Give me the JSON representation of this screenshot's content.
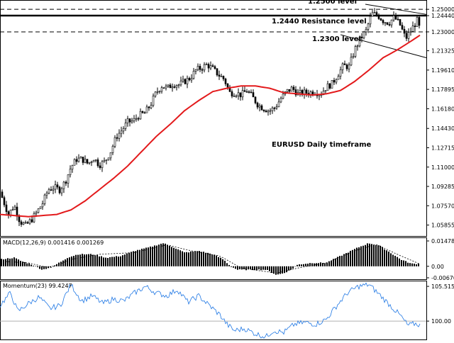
{
  "chart_data": [
    {
      "type": "candlestick",
      "title": "EURUSD Daily timeframe",
      "ylim": [
        1.052,
        1.2545
      ],
      "y_ticks": [
        "1.25000",
        "1.24440",
        "1.23000",
        "1.21325",
        "1.19610",
        "1.17895",
        "1.16180",
        "1.14430",
        "1.12715",
        "1.11000",
        "1.09285",
        "1.07570",
        "1.05855"
      ],
      "y_tick_values": [
        1.25,
        1.2444,
        1.23,
        1.21325,
        1.1961,
        1.17895,
        1.1618,
        1.1443,
        1.12715,
        1.11,
        1.09285,
        1.0757,
        1.05855
      ],
      "close_path": [
        [
          0,
          1.088
        ],
        [
          12,
          1.068
        ],
        [
          20,
          1.076
        ],
        [
          28,
          1.062
        ],
        [
          36,
          1.058
        ],
        [
          44,
          1.063
        ],
        [
          52,
          1.07
        ],
        [
          60,
          1.078
        ],
        [
          68,
          1.09
        ],
        [
          76,
          1.092
        ],
        [
          84,
          1.09
        ],
        [
          92,
          1.097
        ],
        [
          100,
          1.11
        ],
        [
          108,
          1.117
        ],
        [
          116,
          1.117
        ],
        [
          124,
          1.113
        ],
        [
          132,
          1.118
        ],
        [
          140,
          1.112
        ],
        [
          148,
          1.115
        ],
        [
          156,
          1.124
        ],
        [
          164,
          1.137
        ],
        [
          172,
          1.143
        ],
        [
          180,
          1.15
        ],
        [
          188,
          1.151
        ],
        [
          196,
          1.156
        ],
        [
          204,
          1.158
        ],
        [
          212,
          1.165
        ],
        [
          220,
          1.176
        ],
        [
          228,
          1.182
        ],
        [
          236,
          1.18
        ],
        [
          244,
          1.184
        ],
        [
          252,
          1.183
        ],
        [
          260,
          1.186
        ],
        [
          268,
          1.189
        ],
        [
          276,
          1.196
        ],
        [
          284,
          1.198
        ],
        [
          292,
          1.201
        ],
        [
          300,
          1.197
        ],
        [
          308,
          1.192
        ],
        [
          316,
          1.188
        ],
        [
          324,
          1.176
        ],
        [
          332,
          1.176
        ],
        [
          340,
          1.174
        ],
        [
          348,
          1.178
        ],
        [
          356,
          1.172
        ],
        [
          364,
          1.165
        ],
        [
          372,
          1.162
        ],
        [
          380,
          1.16
        ],
        [
          388,
          1.163
        ],
        [
          396,
          1.171
        ],
        [
          404,
          1.177
        ],
        [
          412,
          1.18
        ],
        [
          420,
          1.175
        ],
        [
          428,
          1.176
        ],
        [
          436,
          1.176
        ],
        [
          444,
          1.177
        ],
        [
          452,
          1.175
        ],
        [
          460,
          1.181
        ],
        [
          468,
          1.184
        ],
        [
          476,
          1.192
        ],
        [
          484,
          1.2
        ],
        [
          492,
          1.199
        ],
        [
          500,
          1.214
        ],
        [
          508,
          1.224
        ],
        [
          516,
          1.231
        ],
        [
          524,
          1.246
        ],
        [
          532,
          1.245
        ],
        [
          540,
          1.24
        ],
        [
          548,
          1.238
        ],
        [
          556,
          1.243
        ],
        [
          564,
          1.236
        ],
        [
          572,
          1.224
        ],
        [
          580,
          1.232
        ],
        [
          588,
          1.24
        ],
        [
          592,
          1.232
        ]
      ],
      "ma_path": [
        [
          0,
          1.068
        ],
        [
          20,
          1.067
        ],
        [
          40,
          1.066
        ],
        [
          60,
          1.067
        ],
        [
          80,
          1.068
        ],
        [
          100,
          1.072
        ],
        [
          120,
          1.08
        ],
        [
          140,
          1.09
        ],
        [
          160,
          1.1
        ],
        [
          180,
          1.111
        ],
        [
          200,
          1.124
        ],
        [
          220,
          1.137
        ],
        [
          240,
          1.148
        ],
        [
          260,
          1.16
        ],
        [
          280,
          1.169
        ],
        [
          300,
          1.177
        ],
        [
          320,
          1.18
        ],
        [
          340,
          1.182
        ],
        [
          360,
          1.182
        ],
        [
          380,
          1.18
        ],
        [
          400,
          1.176
        ],
        [
          420,
          1.175
        ],
        [
          440,
          1.174
        ],
        [
          460,
          1.175
        ],
        [
          480,
          1.178
        ],
        [
          500,
          1.186
        ],
        [
          520,
          1.196
        ],
        [
          540,
          1.207
        ],
        [
          560,
          1.214
        ],
        [
          580,
          1.222
        ],
        [
          592,
          1.227
        ]
      ],
      "levels": [
        {
          "label": "1.2500 level",
          "value": 1.25,
          "style": "dashed"
        },
        {
          "label": "1.2440 Resistance level",
          "value": 1.2444,
          "style": "solid"
        },
        {
          "label": "1.2300 level",
          "value": 1.23,
          "style": "dashed"
        }
      ]
    },
    {
      "type": "bar",
      "title": "MACD(12,26,9) 0.001416 0.001269",
      "ylim": [
        -0.006708,
        0.01478
      ],
      "y_ticks": [
        "0.01478",
        "0.00",
        "-0.006708"
      ],
      "y_tick_values": [
        0.01478,
        0.0,
        -0.006708
      ],
      "histogram_path": [
        [
          0,
          0.004
        ],
        [
          20,
          0.005
        ],
        [
          30,
          0.003
        ],
        [
          45,
          0.001
        ],
        [
          60,
          -0.002
        ],
        [
          75,
          0.0
        ],
        [
          95,
          0.005
        ],
        [
          110,
          0.007
        ],
        [
          130,
          0.007
        ],
        [
          150,
          0.005
        ],
        [
          170,
          0.006
        ],
        [
          190,
          0.009
        ],
        [
          210,
          0.011
        ],
        [
          230,
          0.0135
        ],
        [
          245,
          0.011
        ],
        [
          260,
          0.008
        ],
        [
          280,
          0.009
        ],
        [
          300,
          0.007
        ],
        [
          315,
          0.004
        ],
        [
          325,
          0.0
        ],
        [
          335,
          -0.002
        ],
        [
          355,
          -0.002
        ],
        [
          375,
          -0.002
        ],
        [
          390,
          -0.005
        ],
        [
          400,
          -0.004
        ],
        [
          410,
          -0.002
        ],
        [
          420,
          0.001
        ],
        [
          440,
          0.002
        ],
        [
          460,
          0.002
        ],
        [
          475,
          0.005
        ],
        [
          490,
          0.008
        ],
        [
          505,
          0.011
        ],
        [
          520,
          0.0135
        ],
        [
          535,
          0.012
        ],
        [
          550,
          0.008
        ],
        [
          565,
          0.004
        ],
        [
          580,
          0.0015
        ],
        [
          592,
          0.0014
        ]
      ],
      "signal_path": [
        [
          0,
          0.003
        ],
        [
          40,
          0.002
        ],
        [
          70,
          -0.001
        ],
        [
          100,
          0.004
        ],
        [
          140,
          0.007
        ],
        [
          190,
          0.008
        ],
        [
          235,
          0.0125
        ],
        [
          270,
          0.009
        ],
        [
          310,
          0.006
        ],
        [
          340,
          -0.001
        ],
        [
          390,
          -0.004
        ],
        [
          420,
          -0.001
        ],
        [
          460,
          0.002
        ],
        [
          500,
          0.009
        ],
        [
          530,
          0.0128
        ],
        [
          560,
          0.007
        ],
        [
          592,
          0.0013
        ]
      ]
    },
    {
      "type": "line",
      "title": "Momentum(23) 99.4247",
      "ylim": [
        97.2,
        106.2
      ],
      "y_ticks": [
        "105.5154",
        "100.00"
      ],
      "y_tick_values": [
        105.5154,
        100.0
      ],
      "values_path": [
        [
          0,
          102.5
        ],
        [
          15,
          104.5
        ],
        [
          25,
          101.5
        ],
        [
          40,
          102.8
        ],
        [
          55,
          103.8
        ],
        [
          70,
          102.0
        ],
        [
          85,
          102.5
        ],
        [
          100,
          105.8
        ],
        [
          115,
          103.2
        ],
        [
          130,
          104.0
        ],
        [
          145,
          102.8
        ],
        [
          160,
          103.5
        ],
        [
          175,
          103.2
        ],
        [
          190,
          104.5
        ],
        [
          205,
          105.5
        ],
        [
          220,
          104.5
        ],
        [
          235,
          104.0
        ],
        [
          250,
          105.0
        ],
        [
          265,
          103.0
        ],
        [
          280,
          104.0
        ],
        [
          295,
          102.5
        ],
        [
          310,
          101.0
        ],
        [
          320,
          99.5
        ],
        [
          330,
          98.5
        ],
        [
          345,
          98.8
        ],
        [
          360,
          98.0
        ],
        [
          375,
          97.5
        ],
        [
          385,
          98.5
        ],
        [
          400,
          98.2
        ],
        [
          415,
          99.5
        ],
        [
          430,
          99.8
        ],
        [
          445,
          99.5
        ],
        [
          460,
          100.3
        ],
        [
          475,
          102.5
        ],
        [
          490,
          104.5
        ],
        [
          505,
          105.5
        ],
        [
          520,
          105.8
        ],
        [
          535,
          104.2
        ],
        [
          550,
          102.5
        ],
        [
          565,
          100.8
        ],
        [
          575,
          99.3
        ],
        [
          585,
          99.6
        ],
        [
          592,
          99.4
        ]
      ]
    }
  ]
}
